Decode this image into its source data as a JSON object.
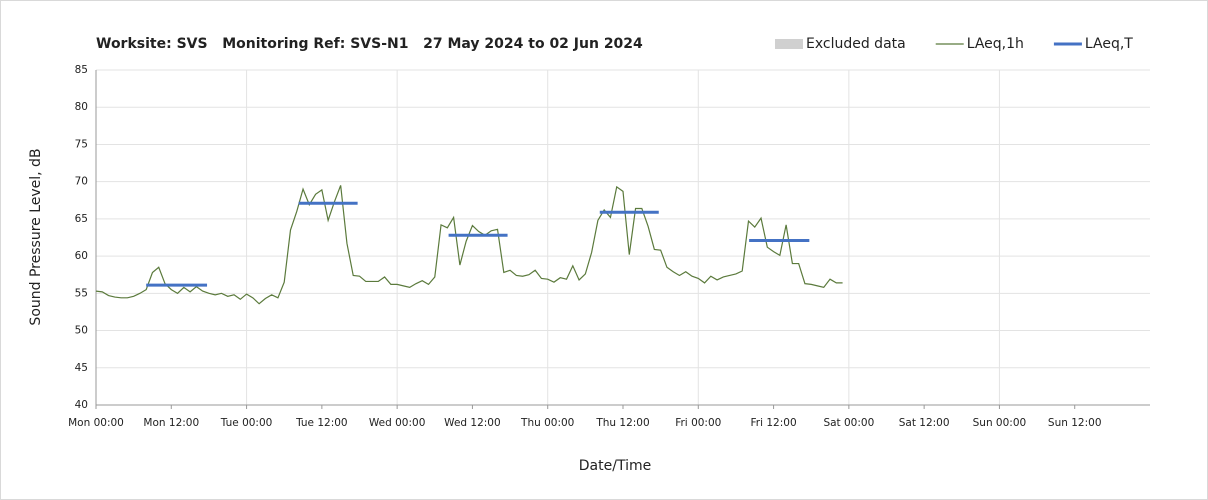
{
  "chart_data": {
    "type": "line",
    "title": "Worksite: SVS   Monitoring Ref: SVS-N1   27 May 2024 to 02 Jun 2024",
    "xlabel": "Date/Time",
    "ylabel": "Sound Pressure Level, dB",
    "xlim": [
      0,
      168
    ],
    "ylim": [
      40,
      85
    ],
    "yticks": [
      40,
      45,
      50,
      55,
      60,
      65,
      70,
      75,
      80,
      85
    ],
    "xticks": [
      {
        "value": 0,
        "label": "Mon 00:00"
      },
      {
        "value": 12,
        "label": "Mon 12:00"
      },
      {
        "value": 24,
        "label": "Tue 00:00"
      },
      {
        "value": 36,
        "label": "Tue 12:00"
      },
      {
        "value": 48,
        "label": "Wed 00:00"
      },
      {
        "value": 60,
        "label": "Wed 12:00"
      },
      {
        "value": 72,
        "label": "Thu 00:00"
      },
      {
        "value": 84,
        "label": "Thu 12:00"
      },
      {
        "value": 96,
        "label": "Fri 00:00"
      },
      {
        "value": 108,
        "label": "Fri 12:00"
      },
      {
        "value": 120,
        "label": "Sat 00:00"
      },
      {
        "value": 132,
        "label": "Sat 12:00"
      },
      {
        "value": 144,
        "label": "Sun 00:00"
      },
      {
        "value": 156,
        "label": "Sun 12:00"
      }
    ],
    "grid": true,
    "legend": "top-right",
    "series": [
      {
        "name": "Excluded data",
        "color": "#d0d0d0",
        "style": "area",
        "x": [],
        "values": []
      },
      {
        "name": "LAeq,1h",
        "color": "#5b7a3c",
        "style": "line",
        "x": [
          0,
          1,
          2,
          3,
          4,
          5,
          6,
          7,
          8,
          9,
          10,
          11,
          12,
          13,
          14,
          15,
          16,
          17,
          18,
          19,
          20,
          21,
          22,
          23,
          24,
          25,
          26,
          27,
          28,
          29,
          30,
          31,
          32,
          33,
          34,
          35,
          36,
          37,
          38,
          39,
          40,
          41,
          42,
          43,
          44,
          45,
          46,
          47,
          48,
          49,
          50,
          51,
          52,
          53,
          54,
          55,
          56,
          57,
          58,
          59,
          60,
          61,
          62,
          63,
          64,
          65,
          66,
          67,
          68,
          69,
          70,
          71,
          72,
          73,
          74,
          75,
          76,
          77,
          78,
          79,
          80,
          81,
          82,
          83,
          84,
          85,
          86,
          87,
          88,
          89,
          90,
          91,
          92,
          93,
          94,
          95,
          96,
          97,
          98,
          99,
          100,
          101,
          102,
          103,
          104,
          105,
          106,
          107,
          108,
          109,
          110,
          111,
          112,
          113,
          114,
          115,
          116,
          117,
          118,
          119
        ],
        "values": [
          55.3,
          55.2,
          54.7,
          54.5,
          54.4,
          54.4,
          54.6,
          55.0,
          55.5,
          57.8,
          58.5,
          56.3,
          55.5,
          55.0,
          55.8,
          55.2,
          55.9,
          55.3,
          55.0,
          54.8,
          55.0,
          54.6,
          54.8,
          54.2,
          54.9,
          54.4,
          53.6,
          54.3,
          54.8,
          54.4,
          56.5,
          63.5,
          66.0,
          69.0,
          66.9,
          68.3,
          68.9,
          64.8,
          67.3,
          69.5,
          61.7,
          57.4,
          57.3,
          56.6,
          56.6,
          56.6,
          57.2,
          56.2,
          56.2,
          56.0,
          55.8,
          56.3,
          56.7,
          56.2,
          57.2,
          64.2,
          63.8,
          65.2,
          58.8,
          62.0,
          64.1,
          63.3,
          62.8,
          63.4,
          63.6,
          57.8,
          58.1,
          57.4,
          57.3,
          57.5,
          58.1,
          57.0,
          56.9,
          56.5,
          57.1,
          56.9,
          58.7,
          56.8,
          57.6,
          60.5,
          64.8,
          66.2,
          65.2,
          69.3,
          68.7,
          60.2,
          66.4,
          66.4,
          64.0,
          60.9,
          60.8,
          58.5,
          57.9,
          57.4,
          57.9,
          57.3,
          57.0,
          56.4,
          57.3,
          56.8,
          57.2,
          57.4,
          57.6,
          58.0,
          64.7,
          63.9,
          65.1,
          61.2,
          60.6,
          60.1,
          64.2,
          59.0,
          59.0,
          56.3,
          56.2,
          56.0,
          55.8,
          56.9,
          56.4,
          56.4
        ]
      },
      {
        "name": "LAeq,T",
        "color": "#4472c4",
        "style": "segments",
        "x": [
          [
            8,
            17.7
          ],
          [
            32.3,
            41.7
          ],
          [
            56.2,
            65.6
          ],
          [
            80.3,
            89.7
          ],
          [
            104.1,
            113.7
          ]
        ],
        "values": [
          56.1,
          67.1,
          62.8,
          65.9,
          62.1
        ]
      }
    ]
  }
}
